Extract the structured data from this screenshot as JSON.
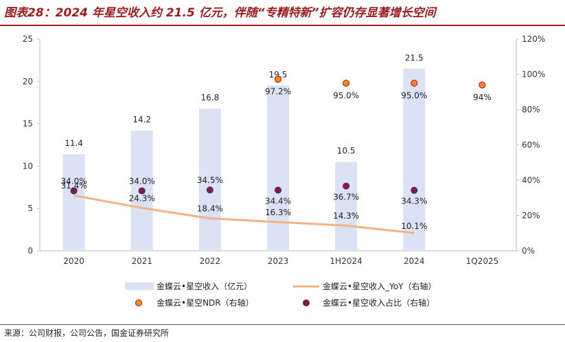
{
  "title": "图表28：2024 年星空收入约 21.5 亿元，伴随“专精特新”扩容仍存显著增长空间",
  "source": "来源：公司财报，公司公告，国金证券研究所",
  "chart_data": {
    "type": "bar",
    "categories": [
      "2020",
      "2021",
      "2022",
      "2023",
      "1H2024",
      "2024",
      "1Q2025"
    ],
    "left_axis": {
      "min": 0,
      "max": 25,
      "ticks": [
        "0",
        "5",
        "10",
        "15",
        "20",
        "25"
      ]
    },
    "right_axis": {
      "min": 0,
      "max": 120,
      "ticks": [
        "0%",
        "20%",
        "40%",
        "60%",
        "80%",
        "100%",
        "120%"
      ]
    },
    "series": [
      {
        "name": "金蝶云•星空收入（亿元）",
        "type": "bar",
        "axis": "left",
        "color": "#dbe2f3",
        "values": [
          11.4,
          14.2,
          16.8,
          19.5,
          10.5,
          21.5,
          null
        ],
        "labels": [
          "11.4",
          "14.2",
          "16.8",
          "19.5",
          "10.5",
          "21.5",
          ""
        ]
      },
      {
        "name": "金蝶云•星空收入_YoY（右轴）",
        "type": "line",
        "axis": "right",
        "color": "#f4b183",
        "values": [
          31.4,
          24.3,
          18.4,
          16.3,
          14.3,
          10.1,
          null
        ],
        "labels": [
          "31.4%",
          "24.3%",
          "18.4%",
          "16.3%",
          "14.3%",
          "10.1%",
          ""
        ]
      },
      {
        "name": "金蝶云•星空NDR（右轴）",
        "type": "scatter",
        "axis": "right",
        "color": "#f28c28",
        "edge": "#c00000",
        "values": [
          null,
          null,
          null,
          97.2,
          95.0,
          95.0,
          94
        ],
        "labels": [
          "",
          "",
          "",
          "97.2%",
          "95.0%",
          "95.0%",
          "94%"
        ]
      },
      {
        "name": "金蝶云•星空收入占比（右轴）",
        "type": "scatter",
        "axis": "right",
        "color": "#8b1a3a",
        "edge": "#3b1f8f",
        "values": [
          34.0,
          34.0,
          34.5,
          34.4,
          36.7,
          34.3,
          null
        ],
        "labels": [
          "34.0%",
          "34.0%",
          "34.5%",
          "34.4%",
          "36.7%",
          "34.3%",
          ""
        ]
      }
    ],
    "legend": "bottom"
  }
}
